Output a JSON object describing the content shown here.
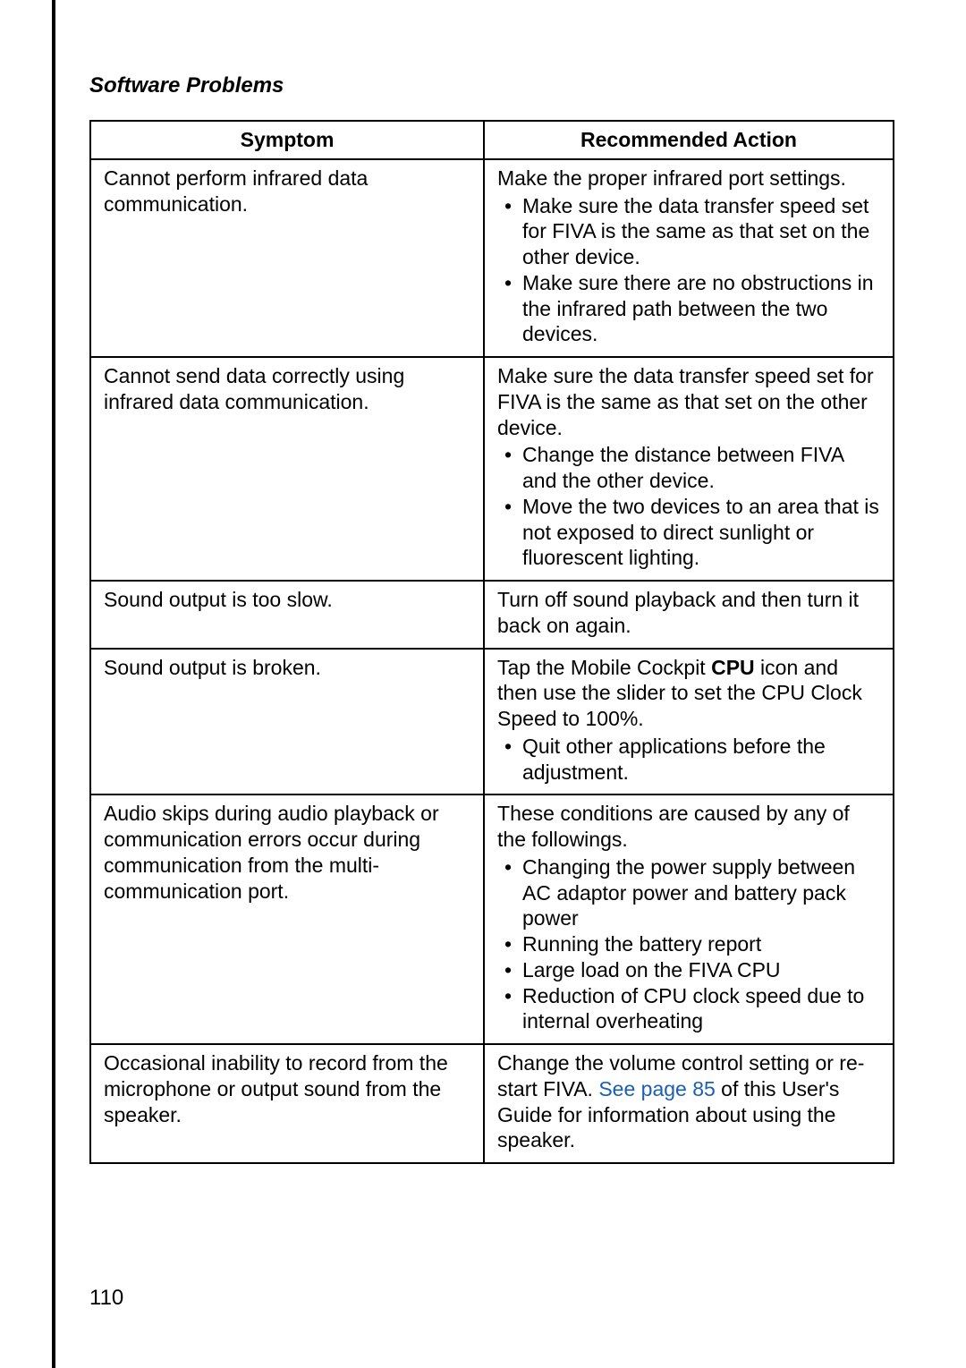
{
  "section_title": "Software Problems",
  "page_number": "110",
  "see_link_color": "#1a5fb4",
  "table": {
    "columns": [
      "Symptom",
      "Recommended Action"
    ],
    "rows": [
      {
        "symptom": "Cannot perform infrared data communication.",
        "action_text": "Make the proper infrared port settings.",
        "bullets": [
          "Make sure the data transfer speed set for FIVA is the same as that set on the other device.",
          "Make sure there are no obstructions in the infrared path between the two devices."
        ]
      },
      {
        "symptom": "Cannot send data correctly using infrared data communication.",
        "action_text": "Make sure the data transfer speed set for FIVA is the same as that set on the other device.",
        "bullets": [
          "Change the distance between FIVA and the other device.",
          "Move the two devices to an area that is not exposed to direct sunlight or fluorescent lighting."
        ]
      },
      {
        "symptom": "Sound output is too slow.",
        "action_text": "Turn off sound playback and then turn it back on again.",
        "bullets": []
      },
      {
        "symptom": "Sound output is broken.",
        "action_text_pre": "Tap the Mobile Cockpit ",
        "action_text_bold": "CPU",
        "action_text_post": " icon and then use the slider to set the CPU Clock Speed to 100%.",
        "bullets": [
          "Quit other applications before the adjustment."
        ]
      },
      {
        "symptom": "Audio skips during audio playback or communication errors occur during communication from the multi-communication port.",
        "action_text": "These conditions are caused by any of the followings.",
        "bullets": [
          "Changing the power supply between AC adaptor power and battery pack power",
          "Running the battery report",
          "Large load on the FIVA CPU",
          "Reduction of CPU clock speed due to internal overheating"
        ]
      },
      {
        "symptom": "Occasional inability to record from the microphone or output sound from the speaker.",
        "action_text_pre2": "Change the volume control setting or re-start FIVA. ",
        "action_text_link": "See page 85",
        "action_text_post2": " of this User's Guide for information about using the speaker.",
        "bullets": []
      }
    ]
  }
}
